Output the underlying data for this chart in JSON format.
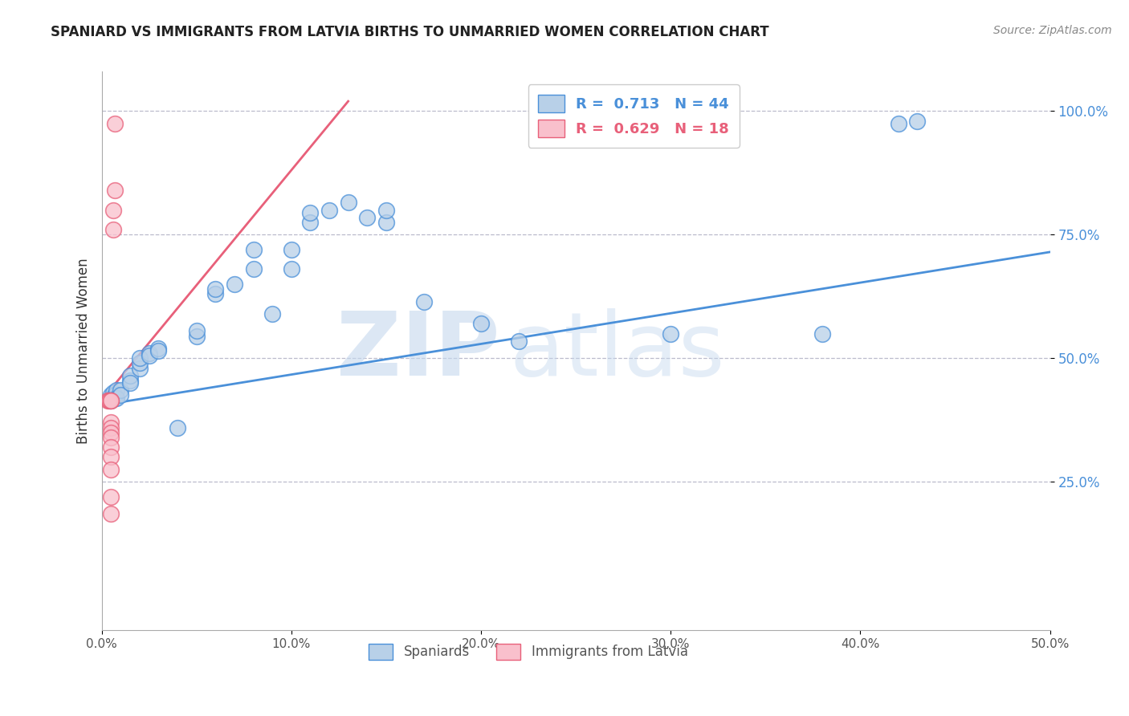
{
  "title": "SPANIARD VS IMMIGRANTS FROM LATVIA BIRTHS TO UNMARRIED WOMEN CORRELATION CHART",
  "source": "Source: ZipAtlas.com",
  "ylabel": "Births to Unmarried Women",
  "xlim": [
    0.0,
    0.5
  ],
  "ylim": [
    -0.05,
    1.08
  ],
  "blue_R": 0.713,
  "blue_N": 44,
  "pink_R": 0.629,
  "pink_N": 18,
  "blue_color": "#b8d0e8",
  "pink_color": "#f9c0cc",
  "blue_line_color": "#4a90d9",
  "pink_line_color": "#e8607a",
  "watermark_zip": "ZIP",
  "watermark_atlas": "atlas",
  "legend_labels": [
    "Spaniards",
    "Immigrants from Latvia"
  ],
  "blue_points": [
    [
      0.005,
      0.415
    ],
    [
      0.005,
      0.425
    ],
    [
      0.006,
      0.43
    ],
    [
      0.007,
      0.425
    ],
    [
      0.007,
      0.42
    ],
    [
      0.008,
      0.435
    ],
    [
      0.008,
      0.42
    ],
    [
      0.01,
      0.435
    ],
    [
      0.01,
      0.425
    ],
    [
      0.015,
      0.455
    ],
    [
      0.015,
      0.465
    ],
    [
      0.015,
      0.45
    ],
    [
      0.02,
      0.48
    ],
    [
      0.02,
      0.49
    ],
    [
      0.02,
      0.5
    ],
    [
      0.025,
      0.51
    ],
    [
      0.025,
      0.505
    ],
    [
      0.03,
      0.52
    ],
    [
      0.03,
      0.515
    ],
    [
      0.04,
      0.36
    ],
    [
      0.05,
      0.545
    ],
    [
      0.05,
      0.555
    ],
    [
      0.06,
      0.63
    ],
    [
      0.06,
      0.64
    ],
    [
      0.07,
      0.65
    ],
    [
      0.08,
      0.68
    ],
    [
      0.08,
      0.72
    ],
    [
      0.09,
      0.59
    ],
    [
      0.1,
      0.68
    ],
    [
      0.1,
      0.72
    ],
    [
      0.11,
      0.775
    ],
    [
      0.11,
      0.795
    ],
    [
      0.12,
      0.8
    ],
    [
      0.13,
      0.815
    ],
    [
      0.14,
      0.785
    ],
    [
      0.15,
      0.775
    ],
    [
      0.15,
      0.8
    ],
    [
      0.17,
      0.615
    ],
    [
      0.2,
      0.57
    ],
    [
      0.22,
      0.535
    ],
    [
      0.3,
      0.55
    ],
    [
      0.38,
      0.55
    ],
    [
      0.42,
      0.975
    ],
    [
      0.43,
      0.98
    ]
  ],
  "pink_points": [
    [
      0.003,
      0.415
    ],
    [
      0.004,
      0.415
    ],
    [
      0.004,
      0.415
    ],
    [
      0.005,
      0.415
    ],
    [
      0.005,
      0.415
    ],
    [
      0.005,
      0.37
    ],
    [
      0.005,
      0.36
    ],
    [
      0.005,
      0.35
    ],
    [
      0.005,
      0.34
    ],
    [
      0.005,
      0.32
    ],
    [
      0.005,
      0.3
    ],
    [
      0.005,
      0.275
    ],
    [
      0.005,
      0.22
    ],
    [
      0.005,
      0.185
    ],
    [
      0.006,
      0.76
    ],
    [
      0.006,
      0.8
    ],
    [
      0.007,
      0.84
    ],
    [
      0.007,
      0.975
    ]
  ],
  "blue_line": [
    0.0,
    0.5
  ],
  "blue_line_y0": 0.405,
  "blue_line_y1": 0.715,
  "pink_line": [
    0.0,
    0.13
  ],
  "pink_line_y0": 0.415,
  "pink_line_y1": 1.02
}
